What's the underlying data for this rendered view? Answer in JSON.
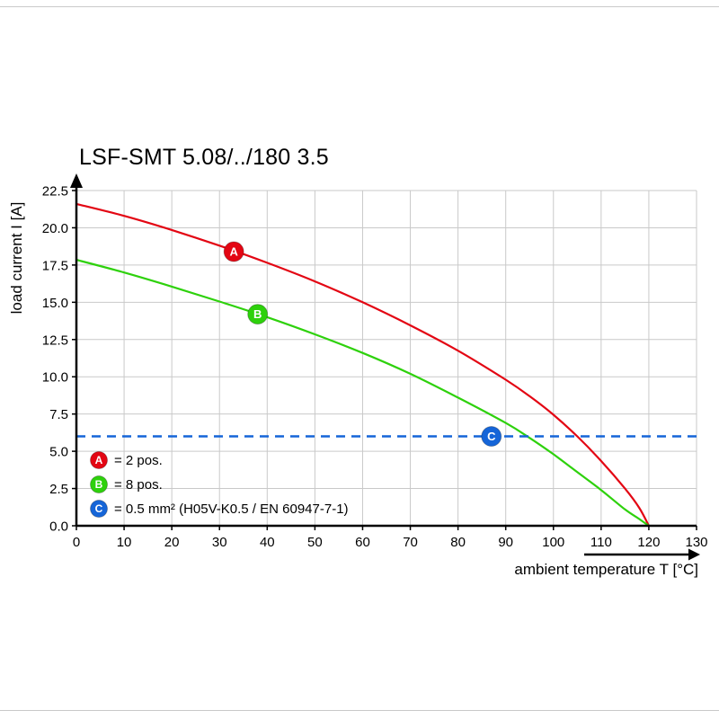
{
  "page": {
    "title": "LSF-SMT 5.08/../180 3.5"
  },
  "chart_data": {
    "type": "line",
    "title": "LSF-SMT 5.08/../180 3.5",
    "xlabel": "ambient temperature T [°C]",
    "ylabel": "load current I [A]",
    "xlim": [
      0,
      130
    ],
    "ylim": [
      0,
      22.5
    ],
    "x_ticks": [
      0,
      10,
      20,
      30,
      40,
      50,
      60,
      70,
      80,
      90,
      100,
      110,
      120,
      130
    ],
    "y_ticks": [
      0,
      2.5,
      5,
      7.5,
      10,
      12.5,
      15,
      17.5,
      20,
      22.5
    ],
    "grid": true,
    "legend_position": "inside-bottom-left",
    "colors": {
      "grid": "#c9c9c9",
      "axis": "#000000"
    },
    "series": [
      {
        "name": "A",
        "label": "= 2 pos.",
        "color": "#e30613",
        "type": "curve",
        "marker": {
          "x": 33,
          "y": 18.4
        },
        "points": [
          [
            0,
            21.6
          ],
          [
            10,
            20.8
          ],
          [
            20,
            19.85
          ],
          [
            30,
            18.8
          ],
          [
            40,
            17.65
          ],
          [
            50,
            16.4
          ],
          [
            60,
            15.0
          ],
          [
            70,
            13.45
          ],
          [
            80,
            11.75
          ],
          [
            90,
            9.8
          ],
          [
            95,
            8.7
          ],
          [
            100,
            7.45
          ],
          [
            105,
            6.0
          ],
          [
            110,
            4.35
          ],
          [
            115,
            2.5
          ],
          [
            118,
            1.2
          ],
          [
            120,
            0
          ]
        ]
      },
      {
        "name": "B",
        "label": "= 8 pos.",
        "color": "#2ed10c",
        "type": "curve",
        "marker": {
          "x": 38,
          "y": 14.2
        },
        "points": [
          [
            0,
            17.85
          ],
          [
            10,
            17.0
          ],
          [
            20,
            16.05
          ],
          [
            30,
            15.05
          ],
          [
            40,
            14.0
          ],
          [
            50,
            12.85
          ],
          [
            60,
            11.6
          ],
          [
            70,
            10.2
          ],
          [
            80,
            8.6
          ],
          [
            90,
            6.9
          ],
          [
            95,
            5.9
          ],
          [
            100,
            4.8
          ],
          [
            105,
            3.6
          ],
          [
            110,
            2.4
          ],
          [
            115,
            1.1
          ],
          [
            118,
            0.45
          ],
          [
            120,
            0
          ]
        ]
      },
      {
        "name": "C",
        "label": "= 0.5 mm² (H05V-K0.5 / EN 60947-7-1)",
        "color": "#1565d8",
        "type": "hline",
        "y": 6.0,
        "marker": {
          "x": 87,
          "y": 6.0
        }
      }
    ]
  }
}
